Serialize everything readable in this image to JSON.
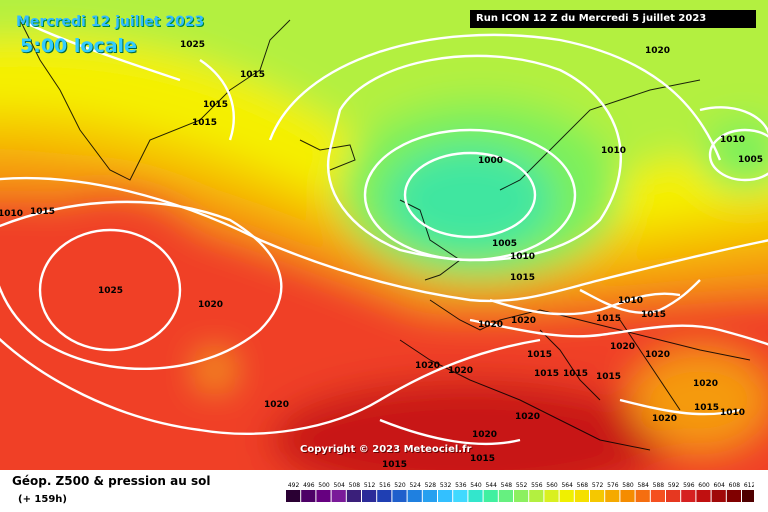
{
  "header": {
    "date": "Mercredi 12 juillet 2023",
    "hour": "5:00 locale",
    "run": "Run ICON 12 Z du Mercredi 5 juillet 2023"
  },
  "footer": {
    "title": "Géop. Z500 & pression au sol",
    "subtitle": "(+ 159h)",
    "copyright": "Copyright © 2023 Meteociel.fr"
  },
  "isobar_labels": [
    {
      "text": "1025"
    },
    {
      "text": "1015"
    },
    {
      "text": "1015"
    },
    {
      "text": "1015"
    },
    {
      "text": "1020"
    },
    {
      "text": "1010"
    },
    {
      "text": "1005"
    },
    {
      "text": "1000"
    },
    {
      "text": "1010"
    },
    {
      "text": "1015"
    },
    {
      "text": "1010"
    },
    {
      "text": "1025"
    },
    {
      "text": "1020"
    },
    {
      "text": "1005"
    },
    {
      "text": "1010"
    },
    {
      "text": "1015"
    },
    {
      "text": "1020"
    },
    {
      "text": "1020"
    },
    {
      "text": "1010"
    },
    {
      "text": "1015"
    },
    {
      "text": "1015"
    },
    {
      "text": "1020"
    },
    {
      "text": "1020"
    },
    {
      "text": "1020"
    },
    {
      "text": "1015"
    },
    {
      "text": "1015"
    },
    {
      "text": "1015"
    },
    {
      "text": "1020"
    },
    {
      "text": "1020"
    },
    {
      "text": "1015"
    },
    {
      "text": "1010"
    },
    {
      "text": "1020"
    },
    {
      "text": "1015"
    },
    {
      "text": "1020"
    },
    {
      "text": "1020"
    },
    {
      "text": "1015"
    },
    {
      "text": "1020"
    },
    {
      "text": "1015"
    }
  ],
  "scale": {
    "values": [
      "492",
      "496",
      "500",
      "504",
      "508",
      "512",
      "516",
      "520",
      "524",
      "528",
      "532",
      "536",
      "540",
      "544",
      "548",
      "552",
      "556",
      "560",
      "564",
      "568",
      "572",
      "576",
      "580",
      "584",
      "588",
      "592",
      "596",
      "600",
      "604",
      "608",
      "612"
    ],
    "colors": [
      "#2a0033",
      "#4d0066",
      "#660080",
      "#7a1a99",
      "#3a1f7a",
      "#2b2b99",
      "#1f3fb3",
      "#1f5fcc",
      "#1f80e0",
      "#26a0f0",
      "#33c0ff",
      "#40d9ff",
      "#33e6cc",
      "#40f0a0",
      "#66f080",
      "#8cf060",
      "#b3f040",
      "#d9f020",
      "#f0f000",
      "#f5e000",
      "#f5c800",
      "#f5aa00",
      "#f58c00",
      "#f56e10",
      "#f55020",
      "#e63820",
      "#d62020",
      "#c01010",
      "#a00808",
      "#800000",
      "#500000"
    ]
  },
  "colors": {
    "low_core": "#3fe6a0",
    "green": "#7df05a",
    "yellow": "#f5f000",
    "orange": "#f59a10",
    "red": "#f04028",
    "darkred": "#c81414"
  }
}
